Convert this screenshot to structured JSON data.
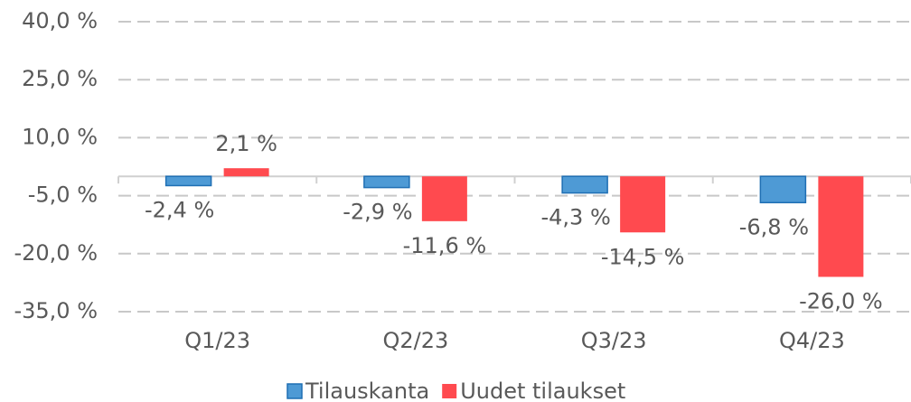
{
  "chart_data": {
    "type": "bar",
    "categories": [
      "Q1/23",
      "Q2/23",
      "Q3/23",
      "Q4/23"
    ],
    "series": [
      {
        "name": "Tilauskanta",
        "color": "#4e9ad5",
        "values": [
          -2.4,
          -2.9,
          -4.3,
          -6.8
        ],
        "value_labels": [
          "-2,4 %",
          "-2,9 %",
          "-4,3 %",
          "-6,8 %"
        ]
      },
      {
        "name": "Uudet tilaukset",
        "color": "#ff4a4f",
        "values": [
          2.1,
          -11.6,
          -14.5,
          -26.0
        ],
        "value_labels": [
          "2,1 %",
          "-11,6 %",
          "-14,5 %",
          "-26,0 %"
        ]
      }
    ],
    "ylim": [
      -35,
      40
    ],
    "yticks": [
      {
        "value": 40,
        "label": "40,0 %"
      },
      {
        "value": 25,
        "label": "25,0 %"
      },
      {
        "value": 10,
        "label": "10,0 %"
      },
      {
        "value": -5,
        "label": "-5,0 %"
      },
      {
        "value": -20,
        "label": "-20,0 %"
      },
      {
        "value": -35,
        "label": "-35,0 %"
      }
    ],
    "grid": true,
    "legend": "bottom"
  }
}
